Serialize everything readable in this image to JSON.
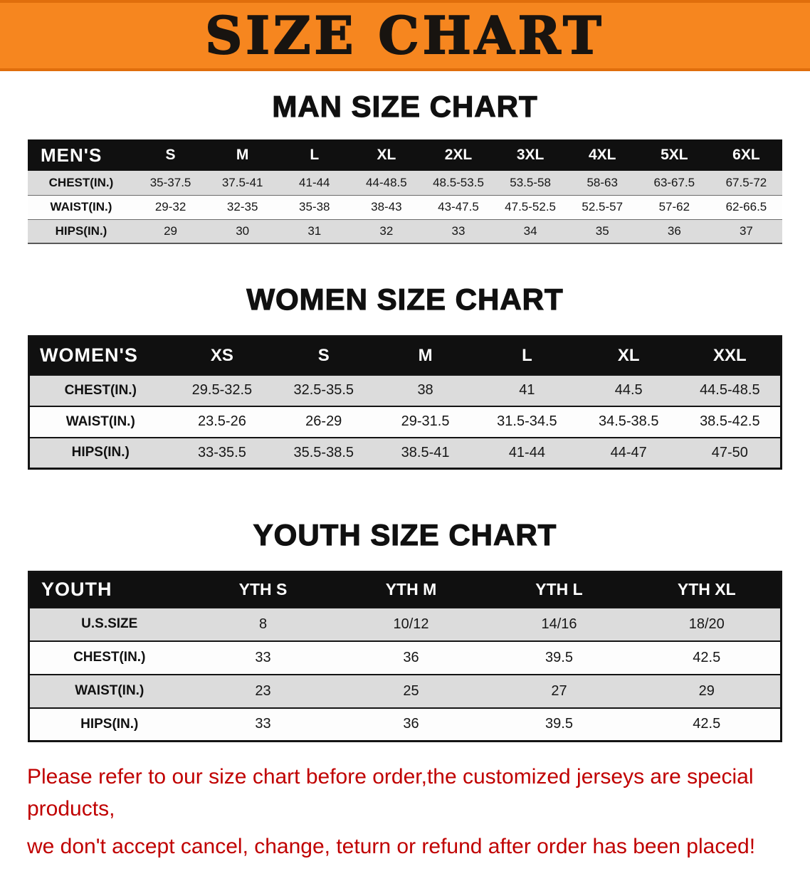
{
  "banner": {
    "title": "SIZE CHART",
    "bg_color": "#f6861f"
  },
  "sections": [
    {
      "heading": "MAN SIZE CHART",
      "table": {
        "corner_label": "MEN'S",
        "columns": [
          "S",
          "M",
          "L",
          "XL",
          "2XL",
          "3XL",
          "4XL",
          "5XL",
          "6XL"
        ],
        "rows": [
          {
            "label": "CHEST(IN.)",
            "values": [
              "35-37.5",
              "37.5-41",
              "41-44",
              "44-48.5",
              "48.5-53.5",
              "53.5-58",
              "58-63",
              "63-67.5",
              "67.5-72"
            ]
          },
          {
            "label": "WAIST(IN.)",
            "values": [
              "29-32",
              "32-35",
              "35-38",
              "38-43",
              "43-47.5",
              "47.5-52.5",
              "52.5-57",
              "57-62",
              "62-66.5"
            ]
          },
          {
            "label": "HIPS(IN.)",
            "values": [
              "29",
              "30",
              "31",
              "32",
              "33",
              "34",
              "35",
              "36",
              "37"
            ]
          }
        ]
      }
    },
    {
      "heading": "WOMEN SIZE CHART",
      "table": {
        "corner_label": "WOMEN'S",
        "columns": [
          "XS",
          "S",
          "M",
          "L",
          "XL",
          "XXL"
        ],
        "rows": [
          {
            "label": "CHEST(IN.)",
            "values": [
              "29.5-32.5",
              "32.5-35.5",
              "38",
              "41",
              "44.5",
              "44.5-48.5"
            ]
          },
          {
            "label": "WAIST(IN.)",
            "values": [
              "23.5-26",
              "26-29",
              "29-31.5",
              "31.5-34.5",
              "34.5-38.5",
              "38.5-42.5"
            ]
          },
          {
            "label": "HIPS(IN.)",
            "values": [
              "33-35.5",
              "35.5-38.5",
              "38.5-41",
              "41-44",
              "44-47",
              "47-50"
            ]
          }
        ]
      }
    },
    {
      "heading": "YOUTH SIZE CHART",
      "table": {
        "corner_label": "YOUTH",
        "columns": [
          "YTH S",
          "YTH M",
          "YTH L",
          "YTH XL"
        ],
        "rows": [
          {
            "label": "U.S.SIZE",
            "values": [
              "8",
              "10/12",
              "14/16",
              "18/20"
            ]
          },
          {
            "label": "CHEST(IN.)",
            "values": [
              "33",
              "36",
              "39.5",
              "42.5"
            ]
          },
          {
            "label": "WAIST(IN.)",
            "values": [
              "23",
              "25",
              "27",
              "29"
            ]
          },
          {
            "label": "HIPS(IN.)",
            "values": [
              "33",
              "36",
              "39.5",
              "42.5"
            ]
          }
        ]
      }
    }
  ],
  "footer": {
    "line1": "Please refer to our size chart before order,the customized jerseys are special products,",
    "line2": "we don't accept cancel, change, teturn or refund after order has been placed!",
    "color": "#c00000"
  }
}
